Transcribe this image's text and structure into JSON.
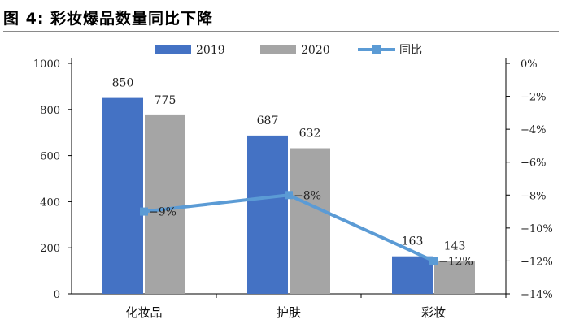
{
  "title": "图 4:  彩妆爆品数量同比下降",
  "colors": {
    "series2019": "#4472C4",
    "series2020": "#A5A5A5",
    "yoy": "#5B9BD5",
    "axis": "#000000"
  },
  "chart_data": {
    "type": "bar",
    "categories": [
      "化妆品",
      "护肤",
      "彩妆"
    ],
    "series": [
      {
        "name": "2019",
        "values": [
          850,
          687,
          163
        ]
      },
      {
        "name": "2020",
        "values": [
          775,
          632,
          143
        ]
      }
    ],
    "line_series": {
      "name": "同比",
      "values": [
        -9,
        -8,
        -12
      ],
      "labels": [
        "-9%",
        "-8%",
        "-12%"
      ]
    },
    "ylim": [
      0,
      1000
    ],
    "yticks": [
      "0",
      "200",
      "400",
      "600",
      "800",
      "1000"
    ],
    "y2lim": [
      -14,
      0
    ],
    "y2ticks": [
      "-14%",
      "-12%",
      "-10%",
      "-8%",
      "-6%",
      "-4%",
      "-2%",
      "0%"
    ],
    "legend": {
      "placement": "top",
      "labels": [
        "2019",
        "2020",
        "同比"
      ]
    }
  }
}
